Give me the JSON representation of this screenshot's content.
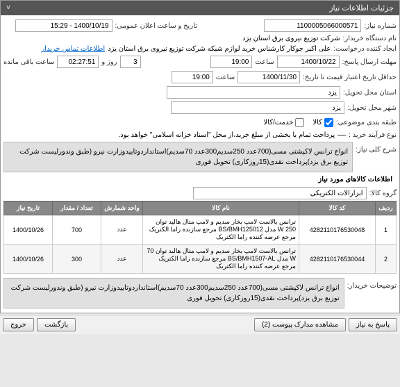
{
  "headers": {
    "details": "جزئیات اطلاعات نیاز"
  },
  "labels": {
    "need_no": "شماره نیاز:",
    "announce_date": "تاریخ و ساعت اعلان عمومی:",
    "buyer_org": "نام دستگاه خریدار:",
    "requester": "ایجاد کننده درخواست:",
    "reply_deadline": "مهلت ارسال پاسخ:",
    "credit_expiry": "حداقل تاریخ اعتبار قیمت تا تاریخ:",
    "delivery_province": "استان محل تحویل:",
    "delivery_city": "شهر محل تحویل:",
    "category": "طبقه بندی موضوعی:",
    "purchase_type": "نوع فرآیند خرید :",
    "need_summary": "شرح کلی نیاز:",
    "items_section": "اطلاعات کالاهای مورد نیاز",
    "goods_group": "گروه کالا:",
    "buyer_notes": "توضیحات خریدار:",
    "time_word": "ساعت",
    "day_and": "روز و",
    "remaining": "ساعت باقی مانده",
    "buyer_contact": "اطلاعات تماس خریدار",
    "view_docs": "مشاهده مدارک پیوست"
  },
  "values": {
    "need_no": "1100005066000571",
    "announce_date": "1400/10/19 - 15:29",
    "buyer_org": "شرکت توزیع نیروی برق استان یزد",
    "requester": "علی اکبر  جوکار  کارشناس خرید لوازم شبکه  شرکت توزیع نیروی برق استان یزد",
    "reply_deadline_date": "1400/10/22",
    "reply_deadline_time": "19:00",
    "remaining_days": "3",
    "remaining_time": "02:27:51",
    "credit_date": "1400/11/30",
    "credit_time": "19:00",
    "province": "یزد",
    "city": "یزد",
    "cat_goods": "کالا",
    "cat_service": "خدمت/کالا",
    "purchase_note": "پرداخت تمام یا بخشی از مبلغ خرید،از محل \"اسناد خزانه اسلامی\" خواهد بود.",
    "summary": "انواع ترانس لاکپشتی مسی(700عدد 250سدیم300عدد 70سدیم)استانداردوتاییدوزارت نیرو (طبق وندورلیست شرکت توزیع برق یزد)پرداخت نقدی(15روزکاری) تحویل فوری",
    "goods_group": "ابزارآلات الکتریکی",
    "buyer_notes": "انواع ترانس لاکپشتی مسی(700عدد 250سدیم300عدد 70سدیم)استانداردوتاییدوزارت نیرو (طبق وندورلیست شرکت توزیع برق یزد)پرداخت نقدی(15روزکاری) تحویل فوری",
    "doc_count": "2"
  },
  "table": {
    "columns": [
      "ردیف",
      "کد کالا",
      "نام کالا",
      "واحد شمارش",
      "تعداد / مقدار",
      "تاریخ نیاز"
    ],
    "rows": [
      [
        "1",
        "4282110176530048",
        "ترانس بالاست لامپ بخار سدیم و لامپ متال هالید توان 250 W مدل BS/BMH125012 مرجع سازنده راما الکتریک مرجع عرضه کننده راما الکتریک",
        "عدد",
        "700",
        "1400/10/26"
      ],
      [
        "2",
        "4282110176530044",
        "ترانس بالاست لامپ بخار سدیم و لامپ متال هالید توان 70 W مدل BS/BMH1507-AL مرجع سازنده راما الکتریک مرجع عرضه کننده راما الکتریک",
        "عدد",
        "300",
        "1400/10/26"
      ]
    ]
  },
  "buttons": {
    "reply": "پاسخ به نیاز",
    "back": "بازگشت",
    "exit": "خروج"
  },
  "col_widths": [
    "30px",
    "110px",
    "auto",
    "60px",
    "70px",
    "70px"
  ]
}
